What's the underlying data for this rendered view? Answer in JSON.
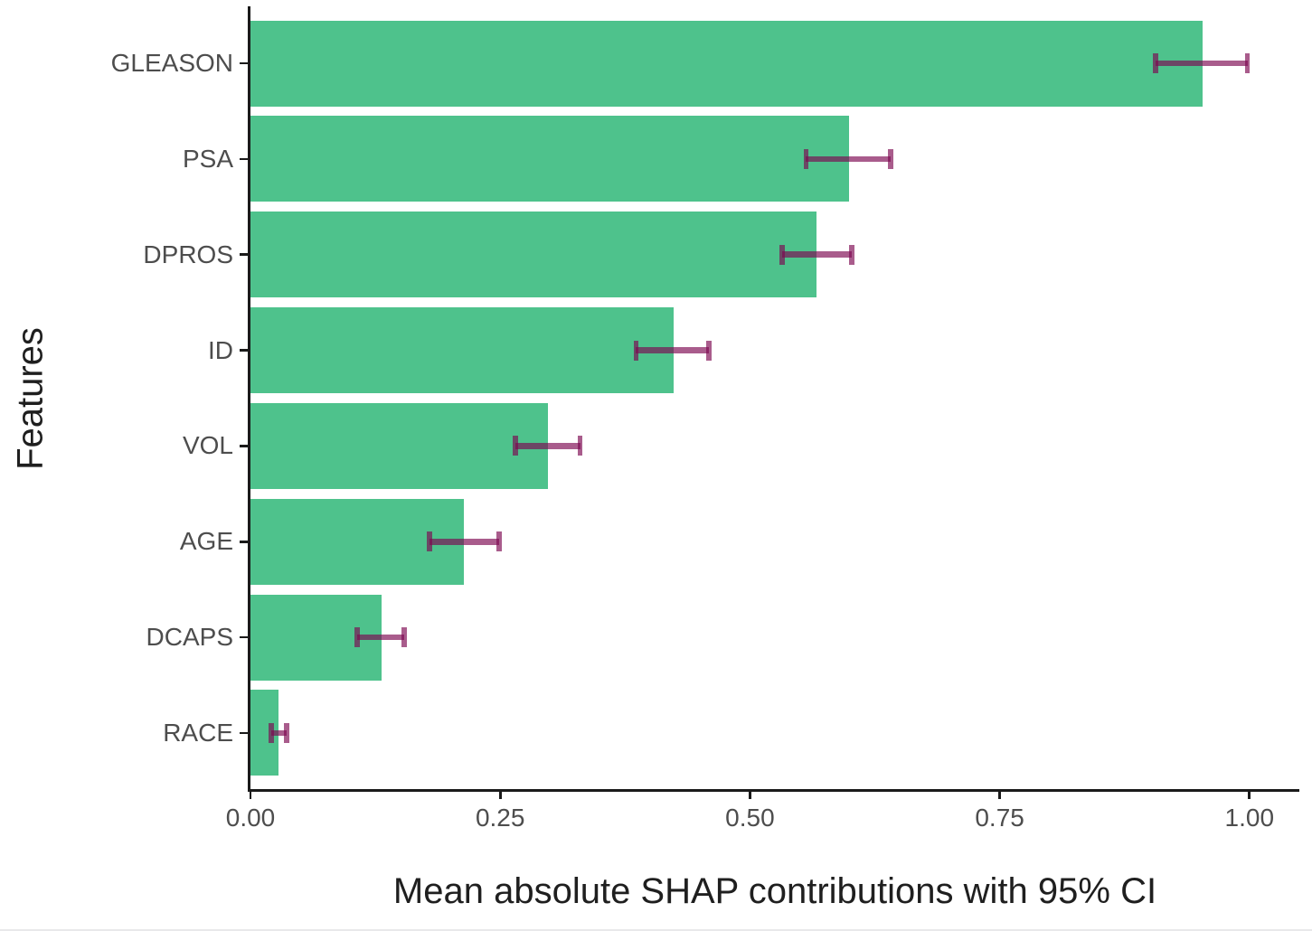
{
  "chart_data": {
    "type": "bar",
    "orientation": "horizontal",
    "title": "",
    "xlabel": "Mean absolute SHAP contributions with 95% CI",
    "ylabel": "Features",
    "categories": [
      "GLEASON",
      "PSA",
      "DPROS",
      "ID",
      "VOL",
      "AGE",
      "DCAPS",
      "RACE"
    ],
    "values": [
      0.953,
      0.599,
      0.567,
      0.424,
      0.298,
      0.214,
      0.131,
      0.028
    ],
    "ci_low": [
      0.906,
      0.556,
      0.532,
      0.386,
      0.265,
      0.179,
      0.107,
      0.021
    ],
    "ci_high": [
      0.998,
      0.641,
      0.602,
      0.459,
      0.33,
      0.249,
      0.154,
      0.036
    ],
    "x_tick_labels": [
      "0.00",
      "0.25",
      "0.50",
      "0.75",
      "1.00"
    ],
    "x_tick_values": [
      0,
      0.25,
      0.5,
      0.75,
      1.0
    ],
    "xlim": [
      0,
      1.05
    ],
    "grid": false,
    "legend_position": "none",
    "bar_color": "#4EC28C",
    "error_bar_color": "rgba(124, 8, 80, 0.66)",
    "axis_color": "#1a1a1a",
    "tick_label_color": "#4d4d4d",
    "title_color": "#1f1f1f",
    "background_color": "#ffffff"
  }
}
